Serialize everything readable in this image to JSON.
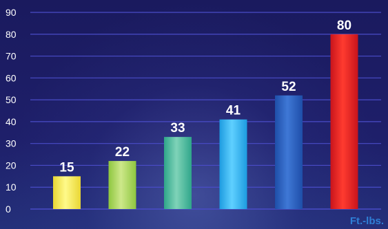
{
  "chart_data": {
    "type": "bar",
    "categories": [
      "",
      "",
      "",
      "",
      "",
      ""
    ],
    "values": [
      15,
      22,
      33,
      41,
      52,
      80
    ],
    "data_labels": [
      "15",
      "22",
      "33",
      "41",
      "52",
      "80"
    ],
    "bar_colors": [
      [
        "#fffa8a",
        "#e9d634"
      ],
      [
        "#cde88a",
        "#8ec63f"
      ],
      [
        "#7fd3b8",
        "#2fa68a"
      ],
      [
        "#5fd0ff",
        "#1d9be0"
      ],
      [
        "#3f78d6",
        "#1e4ea8"
      ],
      [
        "#ff3b2f",
        "#c8141c"
      ]
    ],
    "ylim": [
      0,
      90
    ],
    "yticks": [
      "0",
      "10",
      "20",
      "30",
      "40",
      "50",
      "60",
      "70",
      "80",
      "90"
    ],
    "grid": true,
    "grid_color": "#4a4cc8",
    "title": "",
    "xlabel": "",
    "ylabel": ""
  },
  "unit_label": "Ft.-lbs."
}
